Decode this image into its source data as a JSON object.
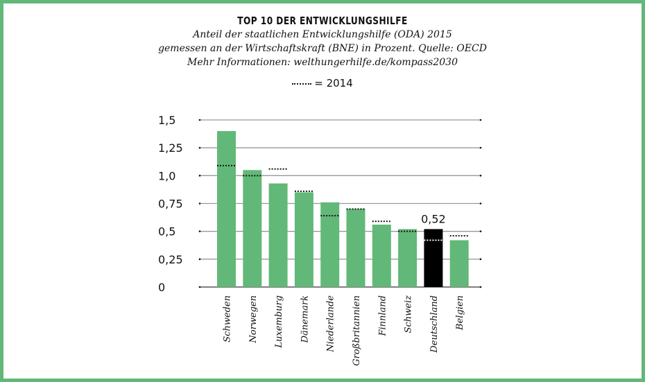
{
  "chart_data": {
    "type": "bar",
    "title": "TOP 10 DER ENTWICKLUNGSHILFE",
    "subtitle": [
      "Anteil der staatlichen Entwicklungshilfe (ODA) 2015",
      "gemessen an der Wirtschaftskraft (BNE) in Prozent. Quelle: OECD",
      "Mehr Informationen: welthungerhilfe.de/kompass2030"
    ],
    "legend": "= 2014",
    "categories": [
      "Schweden",
      "Norwegen",
      "Luxemburg",
      "Dänemark",
      "Niederlande",
      "Großbritannien",
      "Finnland",
      "Schweiz",
      "Deutschland",
      "Belgien"
    ],
    "series": [
      {
        "name": "2015",
        "values": [
          1.4,
          1.05,
          0.93,
          0.85,
          0.76,
          0.7,
          0.56,
          0.52,
          0.52,
          0.42
        ]
      },
      {
        "name": "2014",
        "values": [
          1.09,
          1.0,
          1.06,
          0.86,
          0.64,
          0.7,
          0.59,
          0.5,
          0.42,
          0.46
        ]
      }
    ],
    "highlight": {
      "category": "Deutschland",
      "label": "0,52",
      "color": "#000000"
    },
    "bar_color": "#62b878",
    "yticks": [
      "0",
      "0,25",
      "0,5",
      "0,75",
      "1,0",
      "1,25",
      "1,5"
    ],
    "ylim": [
      0,
      1.5
    ],
    "grid": true
  }
}
